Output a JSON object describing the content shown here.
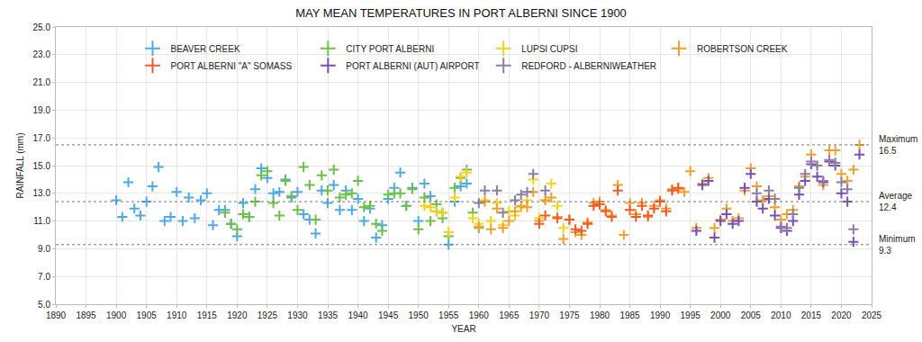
{
  "chart_data": {
    "type": "scatter",
    "title": "MAY MEAN TEMPERATURES IN PORT ALBERNI SINCE 1900",
    "x_label": "YEAR",
    "y_label": "RAINFALL (mm)",
    "marker": "cross",
    "grid": true,
    "legend": "top",
    "xlim": [
      1890,
      2025
    ],
    "xticks": [
      1890,
      1895,
      1900,
      1905,
      1910,
      1915,
      1920,
      1925,
      1930,
      1935,
      1940,
      1945,
      1950,
      1955,
      1960,
      1965,
      1970,
      1975,
      1980,
      1985,
      1990,
      1995,
      2000,
      2005,
      2010,
      2015,
      2020,
      2025
    ],
    "ylim": [
      5,
      25
    ],
    "yticks": [
      {
        "value": 5,
        "label": "5.0"
      },
      {
        "value": 7,
        "label": "7.0"
      },
      {
        "value": 9,
        "label": "9.0"
      },
      {
        "value": 11,
        "label": "11.0"
      },
      {
        "value": 13,
        "label": "13.0"
      },
      {
        "value": 15,
        "label": "15.0"
      },
      {
        "value": 17,
        "label": "17.0"
      },
      {
        "value": 19,
        "label": "19.0"
      },
      {
        "value": 21,
        "label": "21.0"
      },
      {
        "value": 23,
        "label": "23.0"
      },
      {
        "value": 25,
        "label": "25.0"
      }
    ],
    "reference_lines": [
      {
        "label": "Maximum",
        "value": 16.5
      },
      {
        "label": "Average",
        "value": 12.4
      },
      {
        "label": "Minimum",
        "value": 9.3
      }
    ],
    "series": [
      {
        "name": "BEAVER CREEK",
        "color": "#4fa8e8",
        "x": [
          1900,
          1901,
          1902,
          1903,
          1904,
          1905,
          1906,
          1907,
          1908,
          1909,
          1910,
          1911,
          1912,
          1913,
          1914,
          1915,
          1916,
          1917,
          1918,
          1919,
          1920,
          1921,
          1922,
          1923,
          1924,
          1925,
          1926,
          1927,
          1928,
          1929,
          1930,
          1931,
          1932,
          1933,
          1934,
          1935,
          1936,
          1937,
          1938,
          1939,
          1940,
          1941,
          1942,
          1943,
          1944,
          1945,
          1946,
          1947,
          1948,
          1949,
          1950,
          1951,
          1952,
          1953,
          1954,
          1955,
          1956,
          1957,
          1958
        ],
        "values": [
          12.5,
          11.3,
          13.8,
          11.9,
          11.4,
          12.4,
          13.5,
          14.9,
          11.0,
          11.3,
          13.1,
          11.0,
          12.7,
          11.2,
          12.5,
          13.0,
          10.7,
          11.8,
          11.8,
          10.8,
          9.9,
          12.3,
          11.3,
          13.3,
          14.8,
          14.1,
          13.0,
          13.1,
          14.0,
          12.7,
          13.1,
          11.5,
          11.1,
          10.1,
          13.2,
          12.3,
          13.6,
          11.8,
          13.2,
          11.8,
          12.6,
          11.0,
          11.9,
          9.8,
          10.7,
          12.6,
          13.4,
          14.5,
          12.1,
          13.4,
          11.0,
          13.7,
          12.8,
          11.7,
          11.6,
          9.3,
          12.4,
          13.5,
          13.7
        ]
      },
      {
        "name": "CITY PORT ALBERNI",
        "color": "#6cc04a",
        "x": [
          1918,
          1919,
          1920,
          1921,
          1922,
          1923,
          1924,
          1925,
          1926,
          1927,
          1928,
          1929,
          1930,
          1931,
          1932,
          1933,
          1934,
          1935,
          1936,
          1937,
          1938,
          1939,
          1940,
          1941,
          1942,
          1943,
          1944,
          1945,
          1946,
          1947,
          1948,
          1949,
          1950,
          1951,
          1952,
          1953,
          1954,
          1955,
          1956,
          1957,
          1958,
          1959,
          1960
        ],
        "values": [
          11.6,
          10.8,
          10.4,
          11.5,
          11.3,
          12.4,
          14.3,
          14.6,
          12.3,
          11.4,
          13.9,
          12.8,
          11.8,
          14.9,
          13.6,
          11.1,
          14.3,
          13.2,
          14.7,
          12.7,
          12.9,
          13.0,
          13.9,
          12.0,
          12.1,
          10.8,
          10.3,
          12.9,
          13.0,
          13.0,
          12.1,
          13.3,
          10.4,
          12.7,
          11.0,
          12.2,
          11.2,
          9.9,
          13.4,
          14.1,
          14.7,
          11.6,
          10.5
        ]
      },
      {
        "name": "LUPSI CUPSI",
        "color": "#f5d31b",
        "x": [
          1951,
          1952,
          1953,
          1954,
          1955,
          1956,
          1957,
          1958,
          1959,
          1960,
          1961,
          1962,
          1963,
          1964,
          1965,
          1966,
          1967,
          1968,
          1969,
          1970,
          1971,
          1972,
          1973,
          1974
        ],
        "values": [
          12.1,
          12.0,
          11.7,
          11.6,
          10.2,
          12.7,
          14.2,
          14.5,
          11.2,
          10.8,
          12.5,
          11.0,
          12.3,
          10.7,
          11.7,
          11.4,
          12.0,
          12.5,
          14.0,
          11.2,
          12.5,
          13.7,
          12.1,
          10.5
        ]
      },
      {
        "name": "ROBERTSON CREEK",
        "color": "#f0a030",
        "x": [
          1960,
          1961,
          1962,
          1963,
          1964,
          1965,
          1966,
          1967,
          1968,
          1969,
          1970,
          1971,
          1972,
          1973,
          1974,
          1975,
          1976,
          1977,
          1978,
          1979,
          1980,
          1981,
          1982,
          1983,
          1984,
          1985,
          1986,
          1987,
          1988,
          1989,
          1990,
          1991,
          1992,
          1993,
          1994,
          1995,
          1996,
          1997,
          1998,
          1999,
          2000,
          2001,
          2002,
          2003,
          2004,
          2005,
          2006,
          2007,
          2008,
          2009,
          2010,
          2011,
          2012,
          2013,
          2014,
          2015,
          2016,
          2017,
          2018,
          2019,
          2020,
          2021,
          2022,
          2023
        ],
        "values": [
          10.6,
          12.4,
          10.4,
          11.9,
          10.5,
          11.0,
          11.7,
          12.1,
          12.0,
          13.1,
          11.0,
          12.5,
          12.7,
          11.3,
          9.7,
          11.1,
          10.2,
          10.0,
          10.9,
          12.3,
          12.4,
          11.8,
          11.4,
          13.6,
          10.0,
          12.3,
          11.5,
          12.3,
          11.3,
          12.1,
          12.5,
          11.9,
          13.3,
          13.3,
          13.1,
          14.6,
          10.5,
          13.7,
          14.1,
          10.5,
          11.1,
          11.9,
          11.0,
          11.2,
          13.2,
          14.8,
          13.5,
          12.5,
          12.8,
          12.0,
          11.1,
          11.5,
          11.8,
          13.5,
          14.2,
          15.8,
          15.0,
          13.6,
          16.1,
          16.1,
          14.4,
          13.9,
          14.7,
          16.5
        ]
      },
      {
        "name": "PORT ALBERNI \"A\" SOMASS",
        "color": "#f05a28",
        "x": [
          1970,
          1971,
          1973,
          1975,
          1976,
          1977,
          1978,
          1979,
          1980,
          1981,
          1982,
          1983,
          1985,
          1986,
          1987,
          1988,
          1989,
          1990,
          1991,
          1992,
          1993
        ],
        "values": [
          10.8,
          11.4,
          11.2,
          11.1,
          10.4,
          10.3,
          10.8,
          12.1,
          12.2,
          11.7,
          11.3,
          13.2,
          11.8,
          11.3,
          12.1,
          11.4,
          11.9,
          12.4,
          11.7,
          13.2,
          13.4
        ]
      },
      {
        "name": "PORT ALBERNI (AUT) AIRPORT",
        "color": "#7a4fb5",
        "x": [
          1996,
          1997,
          1998,
          1999,
          2000,
          2001,
          2002,
          2003,
          2004,
          2005,
          2006,
          2007,
          2008,
          2009,
          2010,
          2011,
          2012,
          2013,
          2014,
          2015,
          2016,
          2017,
          2018,
          2019,
          2020,
          2021,
          2022,
          2023
        ],
        "values": [
          10.3,
          13.6,
          13.9,
          9.8,
          11.0,
          11.5,
          10.8,
          11.0,
          13.4,
          14.4,
          12.4,
          11.9,
          12.6,
          11.4,
          10.5,
          10.3,
          11.0,
          12.9,
          13.9,
          15.1,
          14.2,
          13.8,
          15.3,
          15.0,
          13.0,
          12.4,
          9.5,
          15.8
        ]
      },
      {
        "name": "REDFORD - ALBERNIWEATHER",
        "color": "#8e7ca8",
        "x": [
          1960,
          1961,
          1963,
          1964,
          1966,
          1967,
          1968,
          1969,
          1971,
          2006,
          2008,
          2009,
          2010,
          2011,
          2012,
          2013,
          2014,
          2015,
          2016,
          2017,
          2018,
          2019,
          2020,
          2021,
          2022
        ],
        "values": [
          12.3,
          13.2,
          13.2,
          11.6,
          12.5,
          12.9,
          13.1,
          14.4,
          13.2,
          13.0,
          13.2,
          12.6,
          10.6,
          10.5,
          11.5,
          13.4,
          14.4,
          15.3,
          15.0,
          13.9,
          15.4,
          15.2,
          13.8,
          13.3,
          10.4
        ]
      }
    ]
  }
}
